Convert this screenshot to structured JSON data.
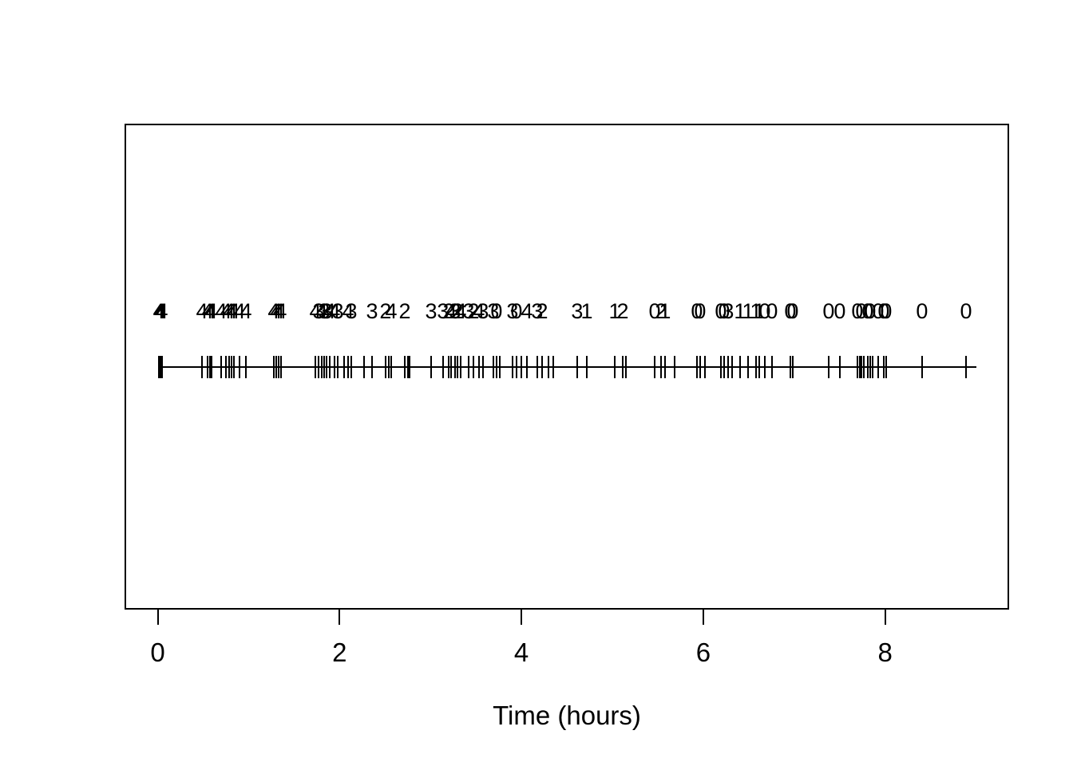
{
  "chart_data": {
    "type": "scatter",
    "subtype": "event-rug-timeline",
    "title": "",
    "xlabel": "Time (hours)",
    "ylabel": "",
    "xlim": [
      0,
      9
    ],
    "x_ticks": [
      0,
      2,
      4,
      6,
      8
    ],
    "grid": false,
    "legend": "none",
    "line_t_range": [
      0,
      9.0
    ],
    "colors": {
      "foreground": "#000000",
      "background": "#ffffff"
    },
    "events": [
      {
        "t": 0.013,
        "label": "4"
      },
      {
        "t": 0.031,
        "label": "4"
      },
      {
        "t": 0.048,
        "label": "4"
      },
      {
        "t": 0.487,
        "label": "4"
      },
      {
        "t": 0.549,
        "label": "4"
      },
      {
        "t": 0.575,
        "label": "4"
      },
      {
        "t": 0.593,
        "label": "4"
      },
      {
        "t": 0.698,
        "label": "4"
      },
      {
        "t": 0.751,
        "label": "4"
      },
      {
        "t": 0.786,
        "label": "4"
      },
      {
        "t": 0.812,
        "label": "4"
      },
      {
        "t": 0.838,
        "label": "4"
      },
      {
        "t": 0.9,
        "label": "4"
      },
      {
        "t": 0.97,
        "label": "4"
      },
      {
        "t": 1.277,
        "label": "4"
      },
      {
        "t": 1.304,
        "label": "4"
      },
      {
        "t": 1.33,
        "label": "4"
      },
      {
        "t": 1.356,
        "label": "4"
      },
      {
        "t": 1.734,
        "label": "4"
      },
      {
        "t": 1.769,
        "label": "3"
      },
      {
        "t": 1.804,
        "label": "4"
      },
      {
        "t": 1.83,
        "label": "3"
      },
      {
        "t": 1.857,
        "label": "3"
      },
      {
        "t": 1.892,
        "label": "4"
      },
      {
        "t": 1.944,
        "label": "4"
      },
      {
        "t": 1.98,
        "label": "3"
      },
      {
        "t": 2.05,
        "label": ""
      },
      {
        "t": 2.094,
        "label": "4"
      },
      {
        "t": 2.129,
        "label": "3"
      },
      {
        "t": 2.269,
        "label": ""
      },
      {
        "t": 2.357,
        "label": "3"
      },
      {
        "t": 2.506,
        "label": "2"
      },
      {
        "t": 2.541,
        "label": ""
      },
      {
        "t": 2.568,
        "label": "4"
      },
      {
        "t": 2.717,
        "label": "2"
      },
      {
        "t": 2.752,
        "label": ""
      },
      {
        "t": 2.77,
        "label": ""
      },
      {
        "t": 3.007,
        "label": "3"
      },
      {
        "t": 3.138,
        "label": "3"
      },
      {
        "t": 3.2,
        "label": "2"
      },
      {
        "t": 3.226,
        "label": "4"
      },
      {
        "t": 3.27,
        "label": "3"
      },
      {
        "t": 3.296,
        "label": "2"
      },
      {
        "t": 3.331,
        "label": "4"
      },
      {
        "t": 3.419,
        "label": "3"
      },
      {
        "t": 3.472,
        "label": "2"
      },
      {
        "t": 3.533,
        "label": "4"
      },
      {
        "t": 3.577,
        "label": "3"
      },
      {
        "t": 3.691,
        "label": "3"
      },
      {
        "t": 3.726,
        "label": "0"
      },
      {
        "t": 3.762,
        "label": ""
      },
      {
        "t": 3.902,
        "label": "3"
      },
      {
        "t": 3.946,
        "label": "0"
      },
      {
        "t": 3.999,
        "label": ""
      },
      {
        "t": 4.06,
        "label": "4"
      },
      {
        "t": 4.174,
        "label": "3"
      },
      {
        "t": 4.227,
        "label": "2"
      },
      {
        "t": 4.297,
        "label": ""
      },
      {
        "t": 4.35,
        "label": ""
      },
      {
        "t": 4.613,
        "label": "3"
      },
      {
        "t": 4.719,
        "label": "1"
      },
      {
        "t": 5.026,
        "label": "1"
      },
      {
        "t": 5.114,
        "label": "2"
      },
      {
        "t": 5.149,
        "label": ""
      },
      {
        "t": 5.465,
        "label": "0"
      },
      {
        "t": 5.535,
        "label": "2"
      },
      {
        "t": 5.579,
        "label": "1"
      },
      {
        "t": 5.684,
        "label": ""
      },
      {
        "t": 5.93,
        "label": "0"
      },
      {
        "t": 5.965,
        "label": "0"
      },
      {
        "t": 6.018,
        "label": ""
      },
      {
        "t": 6.193,
        "label": "0"
      },
      {
        "t": 6.228,
        "label": "0"
      },
      {
        "t": 6.272,
        "label": "3"
      },
      {
        "t": 6.316,
        "label": ""
      },
      {
        "t": 6.404,
        "label": "1"
      },
      {
        "t": 6.492,
        "label": "1"
      },
      {
        "t": 6.579,
        "label": "1"
      },
      {
        "t": 6.614,
        "label": "1"
      },
      {
        "t": 6.676,
        "label": "0"
      },
      {
        "t": 6.755,
        "label": "0"
      },
      {
        "t": 6.957,
        "label": "0"
      },
      {
        "t": 6.983,
        "label": "0"
      },
      {
        "t": 7.378,
        "label": "0"
      },
      {
        "t": 7.501,
        "label": "0"
      },
      {
        "t": 7.694,
        "label": "0"
      },
      {
        "t": 7.721,
        "label": ""
      },
      {
        "t": 7.738,
        "label": "0"
      },
      {
        "t": 7.765,
        "label": ""
      },
      {
        "t": 7.808,
        "label": "0"
      },
      {
        "t": 7.835,
        "label": "0"
      },
      {
        "t": 7.861,
        "label": ""
      },
      {
        "t": 7.923,
        "label": "0"
      },
      {
        "t": 7.984,
        "label": "0"
      },
      {
        "t": 8.01,
        "label": "0"
      },
      {
        "t": 8.406,
        "label": "0"
      },
      {
        "t": 8.889,
        "label": "0"
      }
    ]
  }
}
